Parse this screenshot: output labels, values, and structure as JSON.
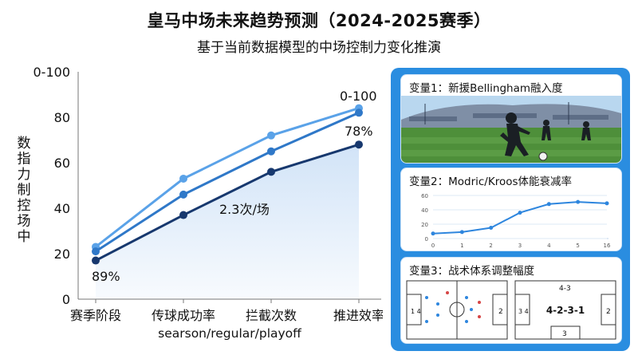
{
  "header": {
    "title": "皇马中场未来趋势预测（2024-2025赛季）",
    "subtitle": "基于当前数据模型的中场控制力变化推演"
  },
  "chart_data": {
    "type": "line",
    "title": "皇马中场未来趋势预测（2024-2025赛季）",
    "subtitle": "基于当前数据模型的中场控制力变化推演",
    "ylabel": "数指力制控场中",
    "xlabel": "searson/regular/playoff",
    "ylim": [
      0,
      100
    ],
    "yticks": [
      "0",
      "20",
      "40",
      "60",
      "80",
      "0-100"
    ],
    "categories": [
      "赛季阶段",
      "传球成功率",
      "拦截次数",
      "推进效率"
    ],
    "series": [
      {
        "values": [
          23,
          53,
          72,
          84
        ],
        "color": "#5aa2e8"
      },
      {
        "values": [
          21,
          46,
          65,
          82
        ],
        "color": "#2f78c8"
      },
      {
        "values": [
          17,
          37,
          56,
          68
        ],
        "color": "#17386e"
      }
    ],
    "annotations": [
      "89%",
      "2.3次/场",
      "78%",
      "0-100"
    ],
    "grid": false,
    "area_fill_color": "#cfe2f7"
  },
  "panel": {
    "cards": [
      {
        "title": "变量1：新援Bellingham融入度"
      },
      {
        "title": "变量2：Modric/Kroos体能衰减率"
      },
      {
        "title": "变量3：战术体系调整幅度"
      }
    ],
    "mini_chart": {
      "type": "line",
      "categories": [
        "0",
        "1",
        "2",
        "3",
        "4",
        "5",
        "16"
      ],
      "values": [
        7,
        9,
        15,
        36,
        48,
        51,
        49
      ],
      "ylim": [
        0,
        60
      ],
      "yticks": [
        "0",
        "20",
        "40",
        "60"
      ],
      "color": "#2e86de"
    },
    "formation_right": {
      "label": "4-2-3-1",
      "top": "4-3",
      "bottom": "3",
      "left_side": "3 4",
      "right_side": "2"
    },
    "formation_left": {
      "left_side": "1 4",
      "right_side": "2"
    }
  },
  "colors": {
    "panel_bg": "#2a8de0",
    "accent": "#2e86de",
    "pitch": "#4e8f3a",
    "sky": "#b9d7ef"
  }
}
